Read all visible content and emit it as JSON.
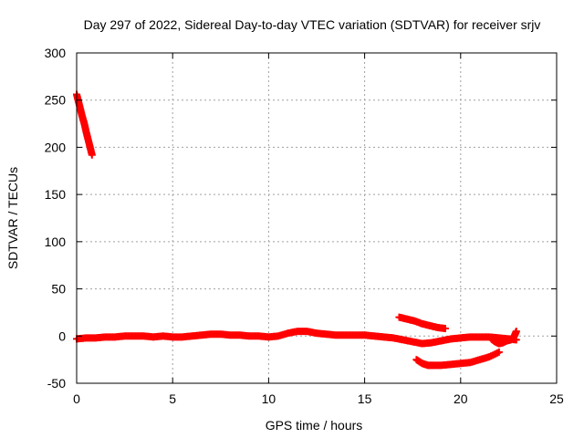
{
  "chart_data": {
    "type": "scatter",
    "title": "Day 297 of 2022, Sidereal Day-to-day VTEC variation (SDTVAR) for receiver srjv",
    "xlabel": "GPS time / hours",
    "ylabel": "SDTVAR / TECUs",
    "xlim": [
      0,
      25
    ],
    "ylim": [
      -50,
      300
    ],
    "xticks": [
      0,
      5,
      10,
      15,
      20,
      25
    ],
    "yticks": [
      -50,
      0,
      50,
      100,
      150,
      200,
      250,
      300
    ],
    "xtick_labels": [
      "0",
      "5",
      "10",
      "15",
      "20",
      "25"
    ],
    "ytick_labels": [
      "-50",
      "0",
      "50",
      "100",
      "150",
      "200",
      "250",
      "300"
    ],
    "grid": true,
    "marker": "plus",
    "color": "#ff0000",
    "series": [
      {
        "x": [
          0.0,
          0.1,
          0.2,
          0.3,
          0.4,
          0.5,
          0.6,
          0.7,
          0.8
        ],
        "y": [
          256,
          248,
          240,
          232,
          225,
          216,
          208,
          200,
          192
        ]
      },
      {
        "x": [
          0.0,
          0.5,
          1.0,
          1.5,
          2.0,
          2.5,
          3.0,
          3.5,
          4.0,
          4.5,
          5.0,
          5.5,
          6.0,
          6.5,
          7.0,
          7.5,
          8.0,
          8.5,
          9.0,
          9.5,
          10.0,
          10.5,
          11.0,
          11.5,
          12.0,
          12.5,
          13.0,
          13.5,
          14.0,
          14.5,
          15.0,
          15.5,
          16.0,
          16.5,
          17.0,
          17.5,
          18.0,
          18.5,
          19.0,
          19.5,
          20.0,
          20.5,
          21.0,
          21.5,
          22.0,
          22.5,
          22.9
        ],
        "y": [
          -3,
          -2,
          -2,
          -1,
          -1,
          0,
          0,
          0,
          -1,
          0,
          -1,
          -1,
          0,
          1,
          2,
          2,
          1,
          1,
          0,
          0,
          -1,
          0,
          3,
          5,
          5,
          3,
          2,
          1,
          1,
          1,
          1,
          0,
          -1,
          -2,
          -4,
          -6,
          -8,
          -7,
          -5,
          -3,
          -2,
          -1,
          -1,
          -1,
          -2,
          -3,
          -4
        ]
      },
      {
        "x": [
          16.8,
          17.2,
          17.6,
          18.0,
          18.4,
          18.8,
          19.2
        ],
        "y": [
          20,
          18,
          16,
          13,
          11,
          9,
          8
        ]
      },
      {
        "x": [
          17.7,
          18.0,
          18.3,
          18.6,
          19.0,
          19.5,
          20.0,
          20.5,
          21.0,
          21.5,
          22.0
        ],
        "y": [
          -25,
          -29,
          -31,
          -31,
          -31,
          -30,
          -29,
          -28,
          -25,
          -22,
          -17
        ]
      },
      {
        "x": [
          21.6,
          21.8,
          22.0,
          22.2,
          22.4,
          22.6,
          22.8,
          22.9
        ],
        "y": [
          -3,
          -6,
          -8,
          -7,
          -5,
          -4,
          0,
          5
        ]
      }
    ]
  }
}
